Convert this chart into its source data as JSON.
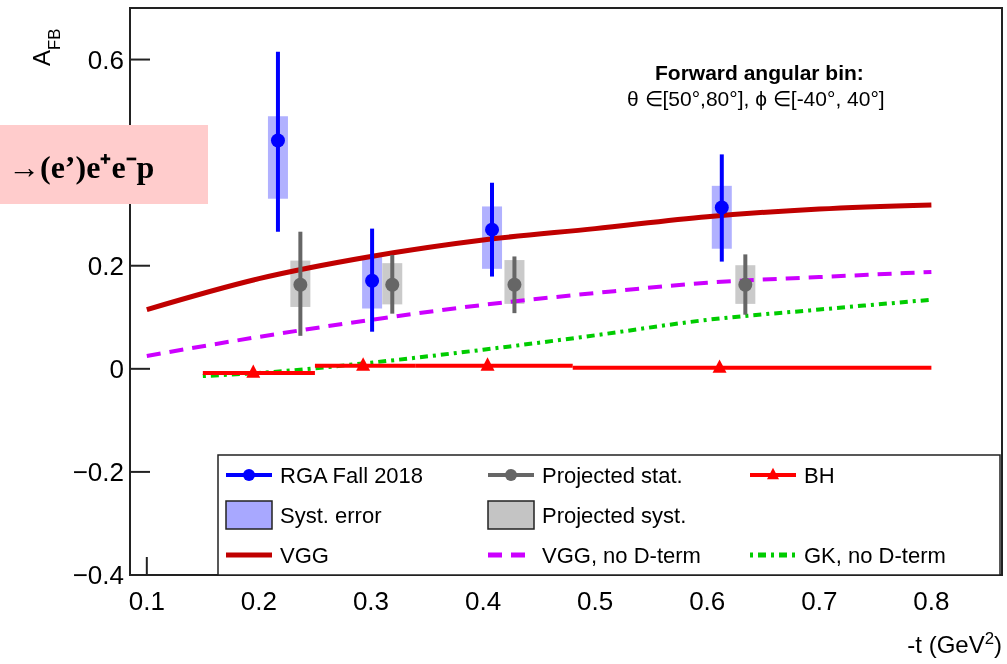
{
  "chart_data": {
    "type": "scatter",
    "xlabel": "-t (GeV$^{2}$)",
    "ylabel": "A$_{FB}$",
    "xlim": [
      0.085,
      0.863
    ],
    "ylim": [
      -0.4,
      0.7
    ],
    "xticks": [
      0.1,
      0.2,
      0.3,
      0.4,
      0.5,
      0.6,
      0.7,
      0.8
    ],
    "yticks": [
      {
        "value": -0.4,
        "label": "−0.4"
      },
      {
        "value": -0.2,
        "label": "−0.2"
      },
      0,
      0.2,
      0.6
    ],
    "legend": "bottom right",
    "grid": false,
    "annotations": [
      "Forward angular bin:",
      "θ ∈[50°,80°], ϕ ∈[-40°, 40°]",
      "→(e’)e⁺e⁻p"
    ],
    "series": [
      {
        "name": "RGA Fall 2018",
        "marker": "circle",
        "color": "#0000ff",
        "x": [
          0.217,
          0.301,
          0.408,
          0.613
        ],
        "values": [
          0.443,
          0.171,
          0.27,
          0.313
        ],
        "errors": [
          [
            0.266,
            0.615
          ],
          [
            0.072,
            0.272
          ],
          [
            0.179,
            0.361
          ],
          [
            0.208,
            0.416
          ]
        ]
      },
      {
        "name": "Projected stat.",
        "marker": "circle",
        "color": "#666666",
        "x": [
          0.237,
          0.319,
          0.428,
          0.634
        ],
        "values": [
          0.163,
          0.163,
          0.163,
          0.163
        ],
        "errors": [
          [
            0.064,
            0.266
          ],
          [
            0.107,
            0.221
          ],
          [
            0.108,
            0.218
          ],
          [
            0.105,
            0.222
          ]
        ]
      },
      {
        "name": "BH",
        "marker": "triangle",
        "color": "#ff0000",
        "x": [
          0.195,
          0.293,
          0.404,
          0.611
        ],
        "values": [
          -0.008,
          0.006,
          0.006,
          0.002
        ],
        "xerrors": [
          [
            0.15,
            0.25
          ],
          [
            0.25,
            0.34
          ],
          [
            0.34,
            0.48
          ],
          [
            0.48,
            0.8
          ]
        ]
      },
      {
        "name": "Syst. error",
        "type": "bar",
        "color": "#a8a8ff",
        "x": [
          0.217,
          0.301,
          0.408,
          0.613
        ],
        "base": [
          0.33,
          0.117,
          0.194,
          0.233
        ],
        "values": [
          0.16,
          0.1,
          0.121,
          0.122
        ]
      },
      {
        "name": "Projected syst.",
        "type": "bar",
        "color": "#c4c4c4",
        "x": [
          0.237,
          0.319,
          0.428,
          0.634
        ],
        "base": [
          0.12,
          0.125,
          0.126,
          0.126
        ],
        "values": [
          0.09,
          0.08,
          0.085,
          0.075
        ]
      },
      {
        "name": "VGG",
        "type": "line",
        "line_style": "solid",
        "color": "#c00000",
        "x": [
          0.1,
          0.2,
          0.3,
          0.4,
          0.5,
          0.6,
          0.7,
          0.8
        ],
        "values": [
          0.115,
          0.175,
          0.218,
          0.25,
          0.272,
          0.295,
          0.31,
          0.318
        ]
      },
      {
        "name": "VGG, no D-term",
        "type": "line",
        "line_style": "dashed",
        "color": "#cc00ff",
        "x": [
          0.1,
          0.2,
          0.3,
          0.4,
          0.5,
          0.6,
          0.7,
          0.8
        ],
        "values": [
          0.025,
          0.062,
          0.095,
          0.124,
          0.147,
          0.167,
          0.178,
          0.188
        ]
      },
      {
        "name": "GK, no D-term",
        "type": "line",
        "line_style": "dotted",
        "color": "#00cc00",
        "x": [
          0.15,
          0.2,
          0.3,
          0.4,
          0.5,
          0.6,
          0.7,
          0.8
        ],
        "values": [
          -0.014,
          -0.008,
          0.012,
          0.037,
          0.065,
          0.095,
          0.115,
          0.134
        ]
      }
    ]
  }
}
